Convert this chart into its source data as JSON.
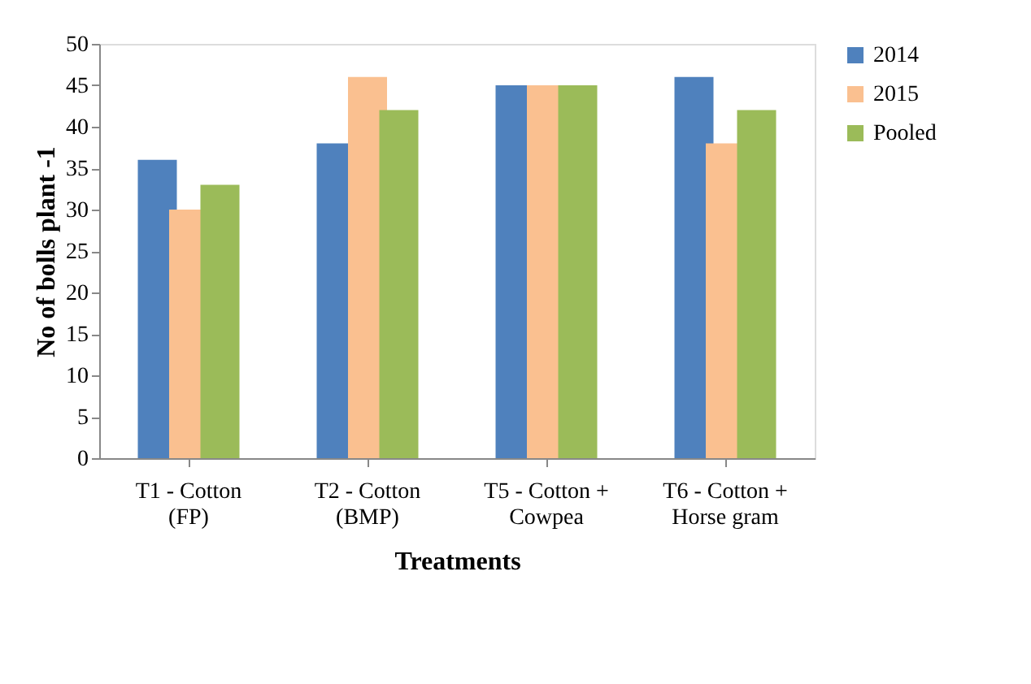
{
  "chart_data": {
    "type": "bar",
    "xlabel": "Treatments",
    "ylabel": "No of bolls plant -1",
    "categories": [
      "T1 - Cotton\n(FP)",
      "T2 - Cotton\n(BMP)",
      "T5 - Cotton +\nCowpea",
      "T6 - Cotton +\nHorse gram"
    ],
    "series": [
      {
        "name": "2014",
        "color": "#4f81bd",
        "values": [
          36,
          38,
          45,
          46
        ]
      },
      {
        "name": "2015",
        "color": "#fac090",
        "values": [
          30,
          46,
          45,
          38
        ]
      },
      {
        "name": "Pooled",
        "color": "#9bbb59",
        "values": [
          33,
          42,
          45,
          42
        ]
      }
    ],
    "ylim": [
      0,
      50
    ],
    "yticks": [
      0,
      5,
      10,
      15,
      20,
      25,
      30,
      35,
      40,
      45,
      50
    ],
    "grid": false,
    "legend": "right"
  }
}
